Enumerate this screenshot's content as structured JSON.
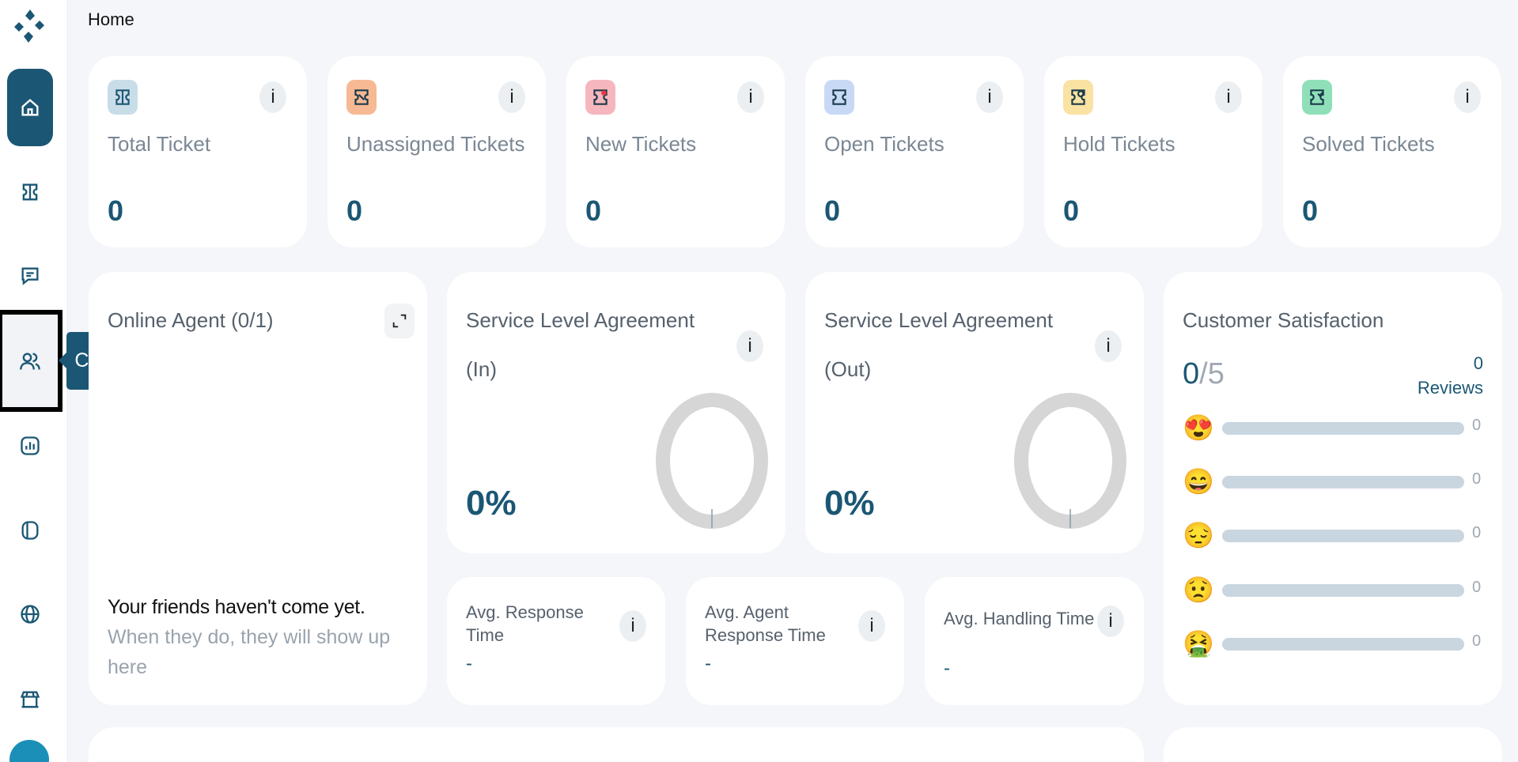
{
  "header": {
    "title": "Home"
  },
  "sidebar": {
    "items": [
      {
        "name": "home",
        "icon": "home-icon"
      },
      {
        "name": "tickets",
        "icon": "ticket-icon"
      },
      {
        "name": "chat",
        "icon": "chat-icon"
      },
      {
        "name": "contact",
        "icon": "users-icon"
      },
      {
        "name": "reports",
        "icon": "chart-icon"
      },
      {
        "name": "apps",
        "icon": "cube-icon"
      },
      {
        "name": "web",
        "icon": "globe-icon"
      },
      {
        "name": "store",
        "icon": "store-icon"
      }
    ],
    "tooltip": "Contact"
  },
  "stats": [
    {
      "label": "Total Ticket",
      "value": "0",
      "color": "#c9dde8"
    },
    {
      "label": "Unassigned Tickets",
      "value": "0",
      "color": "#f7b994"
    },
    {
      "label": "New Tickets",
      "value": "0",
      "color": "#f6b6bd"
    },
    {
      "label": "Open Tickets",
      "value": "0",
      "color": "#c7d9f5"
    },
    {
      "label": "Hold Tickets",
      "value": "0",
      "color": "#f9e2a2"
    },
    {
      "label": "Solved Tickets",
      "value": "0",
      "color": "#8fe0b9"
    }
  ],
  "online_agent": {
    "title": "Online Agent (0/1)",
    "empty_strong": "Your friends haven't come yet.",
    "empty_rest": " When they do, they will show up here"
  },
  "sla_in": {
    "title": "Service Level Agreement",
    "subtitle": "(In)",
    "value": "0%"
  },
  "sla_out": {
    "title": "Service Level Agreement",
    "subtitle": "(Out)",
    "value": "0%"
  },
  "metrics": [
    {
      "label_line1": "Avg. Response",
      "label_line2": "Time",
      "value": "-"
    },
    {
      "label_line1": "Avg. Agent",
      "label_line2": "Response Time",
      "value": "-"
    },
    {
      "label_line1": "Avg. Handling Time",
      "label_line2": "",
      "value": "-"
    }
  ],
  "satisfaction": {
    "title": "Customer Satisfaction",
    "score": "0",
    "max": "/5",
    "reviews_count": "0",
    "reviews_label": "Reviews",
    "ratings": [
      {
        "emoji": "😍",
        "count": "0"
      },
      {
        "emoji": "😄",
        "count": "0"
      },
      {
        "emoji": "😔",
        "count": "0"
      },
      {
        "emoji": "😟",
        "count": "0"
      },
      {
        "emoji": "🤮",
        "count": "0"
      }
    ]
  },
  "colors": {
    "primary": "#1b5774",
    "background": "#f4f6f9",
    "donut_track": "#d6d6d6"
  },
  "info_label": "i"
}
